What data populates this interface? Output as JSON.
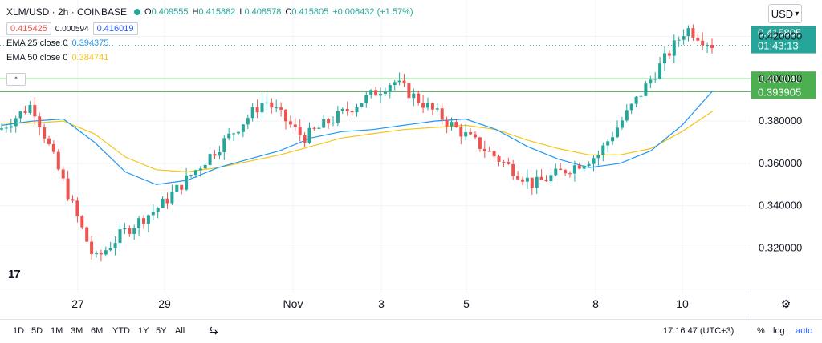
{
  "header": {
    "symbol": "XLM/USD · 2h · COINBASE",
    "open_label": "O",
    "open": "0.409555",
    "high_label": "H",
    "high": "0.415882",
    "low_label": "L",
    "low": "0.408578",
    "close_label": "C",
    "close": "0.415805",
    "change": "+0.006432 (+1.57%)",
    "bid": "0.415425",
    "spread": "0.000594",
    "ask": "0.416019",
    "ema25_label": "EMA 25 close 0",
    "ema25_value": "0.394375",
    "ema50_label": "EMA 50 close 0",
    "ema50_value": "0.384741",
    "collapse_icon": "^",
    "currency": "USD",
    "currency_icon": "▾"
  },
  "bottom": {
    "ranges": [
      "1D",
      "5D",
      "1M",
      "3M",
      "6M",
      "YTD",
      "1Y",
      "5Y",
      "All"
    ],
    "compare_icon": "⇆",
    "time": "17:16:47 (UTC+3)",
    "percent": "%",
    "log": "log",
    "auto": "auto",
    "settings_icon": "⚙"
  },
  "logo_text": "17",
  "colors": {
    "up": "#26a69a",
    "down": "#ef5350",
    "ema25": "#2196f3",
    "ema50": "#f5c518",
    "hline": "#4caf50",
    "grid": "#f0f3fa",
    "axis_text": "#131722",
    "countdown_bg": "#26a69a"
  },
  "chart_data": {
    "type": "candlestick",
    "y_ticks": [
      "0.320000",
      "0.340000",
      "0.360000",
      "0.380000",
      "0.400000",
      "0.420000"
    ],
    "y_tick_values": [
      0.32,
      0.34,
      0.36,
      0.38,
      0.4,
      0.42
    ],
    "x_labels": [
      "27",
      "29",
      "Nov",
      "3",
      "5",
      "8",
      "10"
    ],
    "ylim": [
      0.305,
      0.425
    ],
    "current_price": 0.415805,
    "countdown": "01:43:13",
    "hlines": [
      {
        "value": 0.40004,
        "label": "0.400040"
      },
      {
        "value": 0.393905,
        "label": "0.393905"
      }
    ],
    "key_points": [
      {
        "x": "25 Oct",
        "price": 0.376
      },
      {
        "x": "26 Oct",
        "price": 0.388
      },
      {
        "x": "27 Oct",
        "price": 0.314
      },
      {
        "x": "28 Oct",
        "price": 0.327
      },
      {
        "x": "29 Oct",
        "price": 0.34
      },
      {
        "x": "31 Oct",
        "price": 0.39
      },
      {
        "x": "1 Nov",
        "price": 0.372
      },
      {
        "x": "3 Nov",
        "price": 0.399
      },
      {
        "x": "5 Nov",
        "price": 0.376
      },
      {
        "x": "7 Nov",
        "price": 0.35
      },
      {
        "x": "8 Nov",
        "price": 0.364
      },
      {
        "x": "10 Nov",
        "price": 0.424
      },
      {
        "x": "11 Nov",
        "price": 0.415805
      }
    ],
    "ema25_series": [
      0.378,
      0.38,
      0.381,
      0.37,
      0.356,
      0.35,
      0.352,
      0.358,
      0.362,
      0.366,
      0.372,
      0.375,
      0.376,
      0.378,
      0.38,
      0.381,
      0.376,
      0.368,
      0.362,
      0.358,
      0.36,
      0.366,
      0.378,
      0.394375
    ],
    "ema50_series": [
      0.379,
      0.379,
      0.38,
      0.374,
      0.363,
      0.357,
      0.356,
      0.358,
      0.361,
      0.364,
      0.368,
      0.372,
      0.374,
      0.376,
      0.377,
      0.378,
      0.376,
      0.371,
      0.367,
      0.364,
      0.364,
      0.367,
      0.375,
      0.384741
    ]
  }
}
